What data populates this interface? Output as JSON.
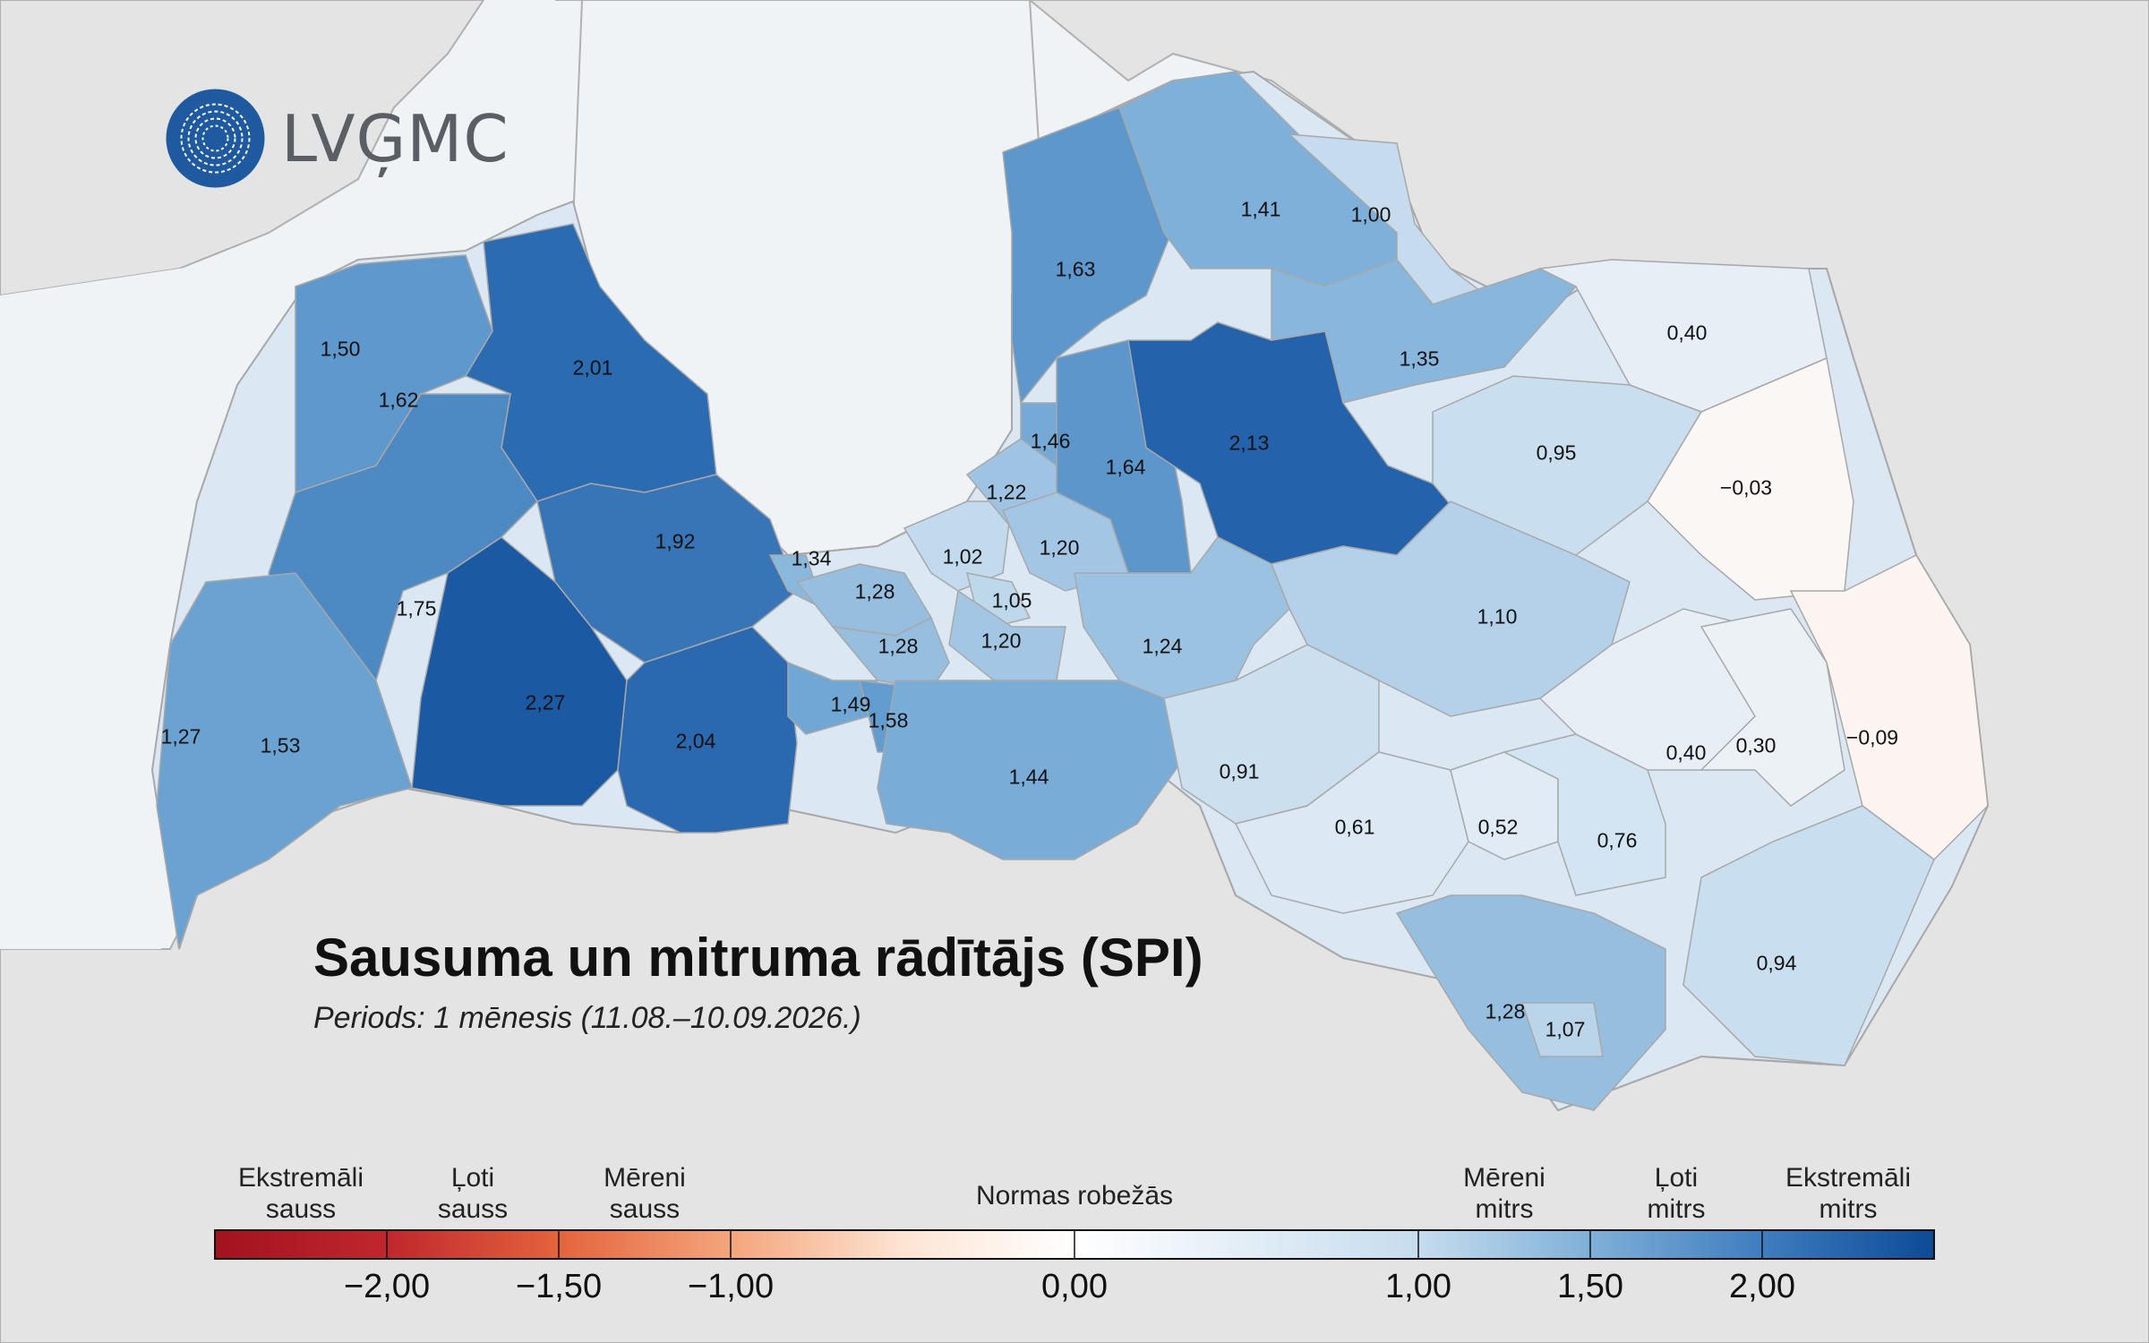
{
  "logo": {
    "text": "LVĢMC"
  },
  "title": "Sausuma un mitruma rādītājs (SPI)",
  "subtitle": "Periods: 1 mēnesis (11.08.–10.09.2026.)",
  "colors": {
    "sea": "#f0f3f6",
    "land_neighbors": "#e4e4e4",
    "border": "#a8a8a8",
    "extreme_dry": "#a2121f",
    "normal": "#ffffff",
    "extreme_wet": "#0d4a97"
  },
  "regions": [
    {
      "value": "1,50",
      "spi": 1.5
    },
    {
      "value": "1,62",
      "spi": 1.62
    },
    {
      "value": "2,01",
      "spi": 2.01
    },
    {
      "value": "1,75",
      "spi": 1.75
    },
    {
      "value": "1,92",
      "spi": 1.92
    },
    {
      "value": "2,27",
      "spi": 2.27
    },
    {
      "value": "2,04",
      "spi": 2.04
    },
    {
      "value": "1,27",
      "spi": 1.27
    },
    {
      "value": "1,53",
      "spi": 1.53
    },
    {
      "value": "1,34",
      "spi": 1.34
    },
    {
      "value": "1,28",
      "spi": 1.28
    },
    {
      "value": "1,28",
      "spi": 1.28
    },
    {
      "value": "1,49",
      "spi": 1.49
    },
    {
      "value": "1,58",
      "spi": 1.58
    },
    {
      "value": "1,02",
      "spi": 1.02
    },
    {
      "value": "1,05",
      "spi": 1.05
    },
    {
      "value": "1,20",
      "spi": 1.2
    },
    {
      "value": "1,22",
      "spi": 1.22
    },
    {
      "value": "1,20",
      "spi": 1.2
    },
    {
      "value": "1,46",
      "spi": 1.46
    },
    {
      "value": "1,64",
      "spi": 1.64
    },
    {
      "value": "1,63",
      "spi": 1.63
    },
    {
      "value": "1,41",
      "spi": 1.41
    },
    {
      "value": "1,00",
      "spi": 1.0
    },
    {
      "value": "2,13",
      "spi": 2.13
    },
    {
      "value": "1,35",
      "spi": 1.35
    },
    {
      "value": "0,40",
      "spi": 0.4
    },
    {
      "value": "0,95",
      "spi": 0.95
    },
    {
      "value": "−0,03",
      "spi": -0.03
    },
    {
      "value": "1,24",
      "spi": 1.24
    },
    {
      "value": "1,44",
      "spi": 1.44
    },
    {
      "value": "1,10",
      "spi": 1.1
    },
    {
      "value": "0,91",
      "spi": 0.91
    },
    {
      "value": "0,61",
      "spi": 0.61
    },
    {
      "value": "0,52",
      "spi": 0.52
    },
    {
      "value": "0,76",
      "spi": 0.76
    },
    {
      "value": "0,40",
      "spi": 0.4
    },
    {
      "value": "0,30",
      "spi": 0.3
    },
    {
      "value": "−0,09",
      "spi": -0.09
    },
    {
      "value": "0,94",
      "spi": 0.94
    },
    {
      "value": "1,28",
      "spi": 1.28
    },
    {
      "value": "1,07",
      "spi": 1.07
    }
  ],
  "legend": {
    "categories": [
      {
        "label": "Ekstremāli\nsauss"
      },
      {
        "label": "Ļoti\nsauss"
      },
      {
        "label": "Mēreni\nsauss"
      },
      {
        "label": "Normas robežās"
      },
      {
        "label": "Mēreni\nmitrs"
      },
      {
        "label": "Ļoti\nmitrs"
      },
      {
        "label": "Ekstremāli\nmitrs"
      }
    ],
    "ticks": [
      "−2,00",
      "−1,50",
      "−1,00",
      "0,00",
      "1,00",
      "1,50",
      "2,00"
    ],
    "range": [
      -2.5,
      2.5
    ]
  }
}
